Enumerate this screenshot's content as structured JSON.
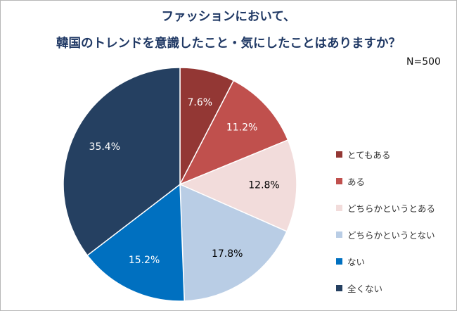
{
  "chart_data": {
    "type": "pie",
    "title_line1": "ファッションにおいて、",
    "title_line2": "韓国のトレンドを意識したこと・気にしたことはありますか？",
    "note": "N=500",
    "legend_placement": "right",
    "start_angle": "12 o'clock, clockwise",
    "slices": [
      {
        "label": "とてもある",
        "value": 7.6,
        "display": "7.6%",
        "color": "#933734",
        "text_color": "#ffffff"
      },
      {
        "label": "ある",
        "value": 11.2,
        "display": "11.2%",
        "color": "#c0504d",
        "text_color": "#ffffff"
      },
      {
        "label": "どちらかというとある",
        "value": 12.8,
        "display": "12.8%",
        "color": "#f2dcdb",
        "text_color": "#000000"
      },
      {
        "label": "どちらかというとない",
        "value": 17.8,
        "display": "17.8%",
        "color": "#b9cde5",
        "text_color": "#000000"
      },
      {
        "label": "ない",
        "value": 15.2,
        "display": "15.2%",
        "color": "#0070c0",
        "text_color": "#ffffff"
      },
      {
        "label": "全くない",
        "value": 35.4,
        "display": "35.4%",
        "color": "#254061",
        "text_color": "#ffffff"
      }
    ]
  }
}
